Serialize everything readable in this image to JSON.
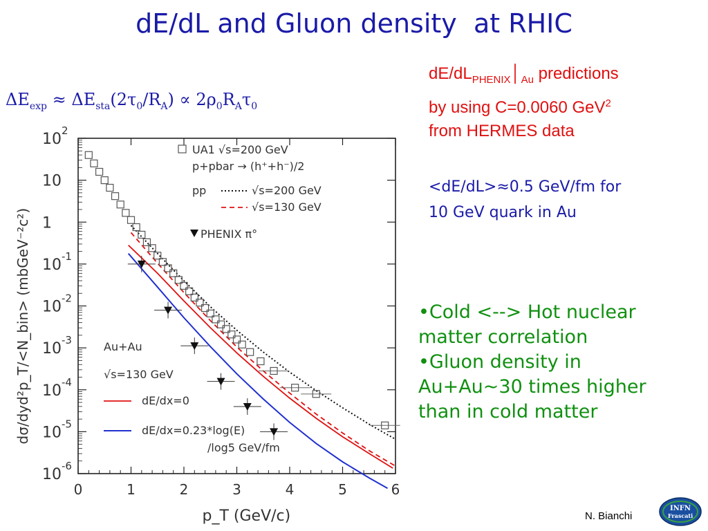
{
  "slide": {
    "title": "dE/dL and Gluon density  at RHIC",
    "formula": {
      "t1": "ΔE",
      "s1": "exp",
      "t2": " ≈ ΔE",
      "s2": "sta",
      "t3": "(2τ",
      "s3": "0",
      "t4": "/R",
      "s4": "A",
      "t5": ") ∝ 2ρ",
      "s5": "0",
      "t6": "R",
      "s6": "A",
      "t7": "τ",
      "s7": "0"
    },
    "red_block": {
      "l1a": "dE/dL",
      "l1sub": "PHENIX",
      "l1bar": "│",
      "l1sub2": "Au",
      "l1b": " predictions",
      "l2a": "by using C=0.0060 GeV",
      "l2sup": "2",
      "l3": "from HERMES data"
    },
    "blue_block": {
      "l1": "<dE/dL>≈0.5 GeV/fm for",
      "l2": "10 GeV quark in Au"
    },
    "green_block": {
      "l1": "•Cold <--> Hot nuclear",
      "l2": "matter correlation",
      "l3": "•Gluon density in",
      "l4": "Au+Au~30 times higher",
      "l5": "than in cold matter"
    },
    "author": "N. Bianchi",
    "logo": {
      "line1": "INFN",
      "line2": "Frascati",
      "color": "#1a4fa0"
    },
    "colors": {
      "title": "#1a1aa8",
      "red": "#e01010",
      "green": "#109010",
      "blue_curve": "#2030d0",
      "black": "#000000"
    }
  },
  "chart_data": {
    "type": "scatter",
    "xlabel": "p_T (GeV/c)",
    "ylabel": "dσ/dyd²p_T/<N_bin> (mbGeV⁻²c²)",
    "xlim": [
      0,
      6
    ],
    "ylim": [
      -6,
      2
    ],
    "y_scale": "log",
    "x_ticks": [
      "0",
      "1",
      "2",
      "3",
      "4",
      "5",
      "6"
    ],
    "y_ticks": [
      {
        "base": "10",
        "exp": "2"
      },
      {
        "base": "10",
        "exp": ""
      },
      {
        "base": "1",
        "exp": ""
      },
      {
        "base": "10",
        "exp": "-1"
      },
      {
        "base": "10",
        "exp": "-2"
      },
      {
        "base": "10",
        "exp": "-3"
      },
      {
        "base": "10",
        "exp": "-4"
      },
      {
        "base": "10",
        "exp": "-5"
      },
      {
        "base": "10",
        "exp": "-6"
      }
    ],
    "y_tick_log_values": [
      2,
      1,
      0,
      -1,
      -2,
      -3,
      -4,
      -5,
      -6
    ],
    "legend_top": {
      "ua1": "UA1  √s=200 GeV",
      "ua1_b": "p+pbar → (h⁺+h⁻)/2",
      "pp": "pp",
      "pp200": "√s=200 GeV",
      "pp130": "√s=130 GeV",
      "phenix": "PHENIX π°"
    },
    "legend_bottom": {
      "system": "Au+Au",
      "energy": "√s=130 GeV",
      "red": "dE/dx=0",
      "blue": "dE/dx=0.23*log(E)",
      "blue2": "/log5 GeV/fm"
    },
    "series": [
      {
        "name": "UA1  √s=200 GeV",
        "marker": "open-square",
        "x": [
          0.2,
          0.3,
          0.4,
          0.5,
          0.6,
          0.7,
          0.8,
          0.9,
          1.0,
          1.1,
          1.2,
          1.3,
          1.4,
          1.5,
          1.6,
          1.7,
          1.8,
          1.9,
          2.0,
          2.1,
          2.2,
          2.3,
          2.4,
          2.5,
          2.6,
          2.7,
          2.8,
          2.9,
          3.0,
          3.1,
          3.25,
          3.45,
          3.7,
          4.1,
          4.5,
          5.8
        ],
        "log_y": [
          1.6,
          1.4,
          1.2,
          1.0,
          0.82,
          0.62,
          0.42,
          0.22,
          0.05,
          -0.12,
          -0.3,
          -0.48,
          -0.62,
          -0.8,
          -0.95,
          -1.1,
          -1.22,
          -1.38,
          -1.52,
          -1.65,
          -1.8,
          -1.92,
          -2.05,
          -2.18,
          -2.32,
          -2.44,
          -2.55,
          -2.68,
          -2.8,
          -2.92,
          -3.1,
          -3.32,
          -3.55,
          -3.95,
          -4.1,
          -4.85
        ]
      },
      {
        "name": "PHENIX π°",
        "marker": "filled-triangle-down",
        "x": [
          1.2,
          1.7,
          2.2,
          2.7,
          3.2,
          3.7
        ],
        "log_y": [
          -1.0,
          -2.1,
          -2.95,
          -3.8,
          -4.4,
          -5.0
        ]
      },
      {
        "name": "pp √s=200 GeV",
        "style": "dotted-black",
        "x": [
          1.0,
          1.5,
          2.0,
          2.5,
          3.0,
          3.5,
          4.0,
          4.5,
          5.0,
          5.5,
          6.0
        ],
        "log_y": [
          -0.08,
          -0.75,
          -1.4,
          -2.02,
          -2.58,
          -3.1,
          -3.58,
          -4.02,
          -4.43,
          -4.82,
          -5.18
        ]
      },
      {
        "name": "pp √s=130 GeV",
        "style": "dashed-red",
        "x": [
          1.0,
          1.5,
          2.0,
          2.5,
          3.0,
          3.5,
          4.0,
          4.5,
          5.0,
          5.5,
          6.0
        ],
        "log_y": [
          -0.25,
          -0.98,
          -1.68,
          -2.35,
          -2.98,
          -3.55,
          -4.08,
          -4.58,
          -5.03,
          -5.45,
          -5.82
        ]
      },
      {
        "name": "dE/dx=0",
        "style": "solid-red",
        "x": [
          0.95,
          1.5,
          2.0,
          2.5,
          3.0,
          3.5,
          4.0,
          4.5,
          5.0,
          5.5,
          5.95
        ],
        "log_y": [
          -0.55,
          -1.22,
          -1.88,
          -2.52,
          -3.12,
          -3.68,
          -4.2,
          -4.68,
          -5.12,
          -5.52,
          -5.87
        ]
      },
      {
        "name": "dE/dx=0.23*log(E)",
        "style": "solid-blue",
        "x": [
          0.95,
          1.5,
          2.0,
          2.5,
          3.0,
          3.5,
          4.0,
          4.5,
          5.0,
          5.5,
          5.85
        ],
        "log_y": [
          -0.75,
          -1.55,
          -2.28,
          -2.97,
          -3.62,
          -4.22,
          -4.78,
          -5.28,
          -5.72,
          -6.1,
          -6.35
        ]
      }
    ]
  }
}
